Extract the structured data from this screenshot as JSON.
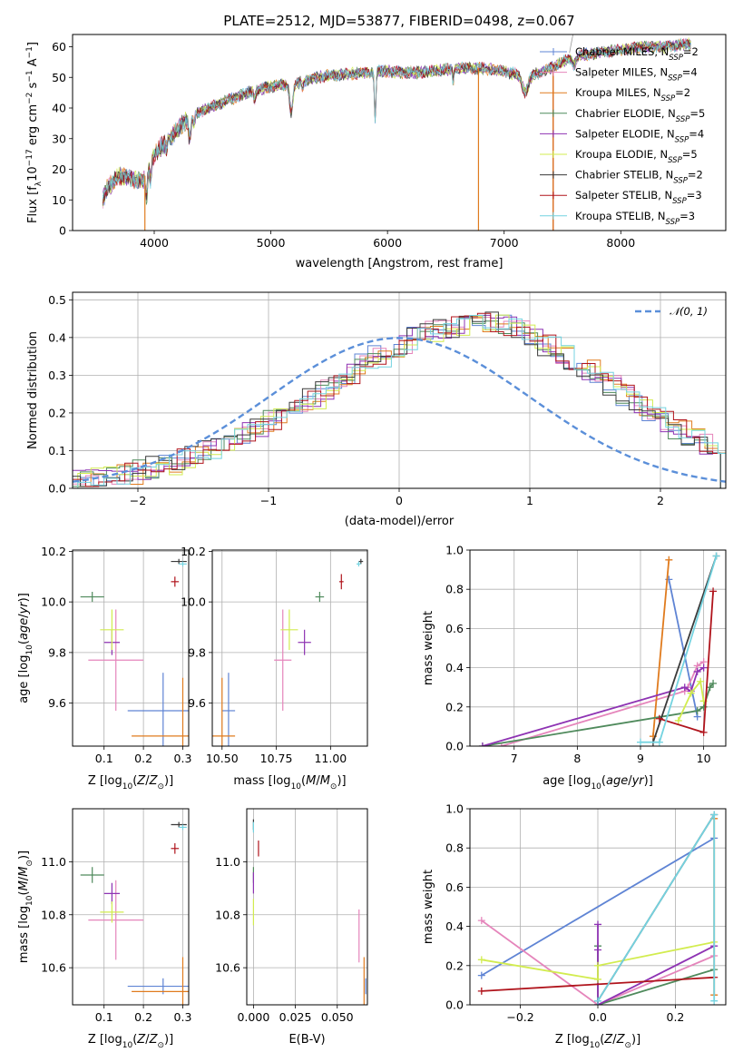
{
  "figure": {
    "title": "PLATE=2512, MJD=53877, FIBERID=0498, z=0.067"
  },
  "colors": {
    "Chabrier MILES": "#5f84d4",
    "Salpeter MILES": "#e585bb",
    "Kroupa MILES": "#e07b1e",
    "Chabrier ELODIE": "#4f8a5c",
    "Salpeter ELODIE": "#8e33b3",
    "Kroupa ELODIE": "#d2ec4f",
    "Chabrier STELIB": "#3a3a3a",
    "Salpeter STELIB": "#b0141c",
    "Kroupa STELIB": "#74d3e0"
  },
  "chart_data": [
    {
      "id": "spectrum",
      "type": "line",
      "title": "PLATE=2512, MJD=53877, FIBERID=0498, z=0.067",
      "xlabel": "wavelength [Angstrom, rest frame]",
      "ylabel": "Flux [f_λ 10^-17 erg cm^-2 s^-1 A^-1]",
      "xlim": [
        3300,
        8900
      ],
      "ylim": [
        0,
        64
      ],
      "xticks": [
        4000,
        5000,
        6000,
        7000,
        8000
      ],
      "yticks": [
        0,
        10,
        20,
        30,
        40,
        50,
        60
      ],
      "grid": false,
      "legend_position": "right",
      "legend": [
        {
          "series": "Chabrier MILES",
          "label": "Chabrier MILES, N",
          "sub": "SSP",
          "tail": "=2"
        },
        {
          "series": "Salpeter MILES",
          "label": "Salpeter MILES, N",
          "sub": "SSP",
          "tail": "=4"
        },
        {
          "series": "Kroupa MILES",
          "label": "Kroupa MILES, N",
          "sub": "SSP",
          "tail": "=2"
        },
        {
          "series": "Chabrier ELODIE",
          "label": "Chabrier ELODIE, N",
          "sub": "SSP",
          "tail": "=5"
        },
        {
          "series": "Salpeter ELODIE",
          "label": "Salpeter ELODIE, N",
          "sub": "SSP",
          "tail": "=4"
        },
        {
          "series": "Kroupa ELODIE",
          "label": "Kroupa ELODIE, N",
          "sub": "SSP",
          "tail": "=5"
        },
        {
          "series": "Chabrier STELIB",
          "label": "Chabrier STELIB, N",
          "sub": "SSP",
          "tail": "=2"
        },
        {
          "series": "Salpeter STELIB",
          "label": "Salpeter STELIB, N",
          "sub": "SSP",
          "tail": "=3"
        },
        {
          "series": "Kroupa STELIB",
          "label": "Kroupa STELIB, N",
          "sub": "SSP",
          "tail": "=3"
        }
      ],
      "continuum": {
        "x": [
          3550,
          3600,
          3700,
          3800,
          3900,
          4000,
          4100,
          4200,
          4300,
          4400,
          4600,
          4800,
          5000,
          5200,
          5400,
          5600,
          5800,
          5900,
          6000,
          6200,
          6400,
          6600,
          6800,
          7000,
          7200,
          7400,
          7600,
          7800,
          8000,
          8200,
          8400,
          8600
        ],
        "y": [
          9,
          14,
          18,
          17,
          16,
          25,
          29,
          33,
          37,
          39,
          42,
          45,
          47,
          48,
          50,
          51,
          51.5,
          52,
          52,
          51.5,
          52,
          53,
          53,
          52,
          50,
          53,
          57,
          58,
          59,
          60,
          60,
          61
        ]
      },
      "model_dropouts": [
        {
          "series": "Kroupa MILES",
          "x": 3920
        },
        {
          "series": "Kroupa MILES",
          "x": 6780
        },
        {
          "series": "Salpeter STELIB",
          "x": 7420
        },
        {
          "series": "Kroupa MILES",
          "x": 7420
        }
      ]
    },
    {
      "id": "residuals",
      "type": "histogram",
      "xlabel": "(data-model)/error",
      "ylabel": "Normed distribution",
      "xlim": [
        -2.5,
        2.5
      ],
      "ylim": [
        0,
        0.52
      ],
      "xticks": [
        -2,
        -1,
        0,
        1,
        2
      ],
      "yticks": [
        0.0,
        0.1,
        0.2,
        0.3,
        0.4,
        0.5
      ],
      "grid": true,
      "legend_position": "top-right",
      "reference": {
        "label": "𝒩(0, 1)",
        "color": "#5b8fd9",
        "mean": 0,
        "sigma": 1
      },
      "bins": {
        "start": -2.5,
        "width": 0.1,
        "count": 50
      },
      "base_counts": [
        0.02,
        0.025,
        0.03,
        0.035,
        0.04,
        0.05,
        0.055,
        0.065,
        0.075,
        0.085,
        0.1,
        0.115,
        0.13,
        0.145,
        0.165,
        0.185,
        0.2,
        0.22,
        0.24,
        0.265,
        0.285,
        0.305,
        0.33,
        0.35,
        0.37,
        0.385,
        0.4,
        0.415,
        0.425,
        0.43,
        0.44,
        0.445,
        0.44,
        0.43,
        0.42,
        0.4,
        0.38,
        0.36,
        0.34,
        0.315,
        0.29,
        0.27,
        0.245,
        0.22,
        0.195,
        0.175,
        0.155,
        0.135,
        0.115,
        0.1
      ]
    },
    {
      "id": "z-age",
      "type": "scatter",
      "xlabel": "Z [log10(Z/Z⊙)]",
      "ylabel": "age [log10(age/yr)]",
      "xlim": [
        0.02,
        0.315
      ],
      "ylim": [
        9.43,
        10.205
      ],
      "xticks": [
        0.1,
        0.2,
        0.3
      ],
      "yticks": [
        9.6,
        9.8,
        10.0,
        10.2
      ],
      "grid": true,
      "points": [
        {
          "series": "Chabrier MILES",
          "x": 0.25,
          "y": 9.57,
          "xerr": 0.09,
          "yerr": 0.15
        },
        {
          "series": "Salpeter MILES",
          "x": 0.13,
          "y": 9.77,
          "xerr": 0.07,
          "yerr": 0.2
        },
        {
          "series": "Kroupa MILES",
          "x": 0.3,
          "y": 9.47,
          "xerr": 0.13,
          "yerr": 0.23
        },
        {
          "series": "Chabrier ELODIE",
          "x": 0.07,
          "y": 10.02,
          "xerr": 0.03,
          "yerr": 0.02
        },
        {
          "series": "Salpeter ELODIE",
          "x": 0.12,
          "y": 9.84,
          "xerr": 0.02,
          "yerr": 0.05
        },
        {
          "series": "Kroupa ELODIE",
          "x": 0.12,
          "y": 9.89,
          "xerr": 0.03,
          "yerr": 0.08
        },
        {
          "series": "Chabrier STELIB",
          "x": 0.29,
          "y": 10.16,
          "xerr": 0.02,
          "yerr": 0.01
        },
        {
          "series": "Salpeter STELIB",
          "x": 0.28,
          "y": 10.08,
          "xerr": 0.01,
          "yerr": 0.02
        },
        {
          "series": "Kroupa STELIB",
          "x": 0.3,
          "y": 10.15,
          "xerr": 0.01,
          "yerr": 0.01
        }
      ]
    },
    {
      "id": "mass-age",
      "type": "scatter",
      "xlabel": "mass [log10(M/M⊙)]",
      "ylabel": "",
      "xlim": [
        10.455,
        11.17
      ],
      "ylim": [
        9.43,
        10.205
      ],
      "xticks": [
        10.5,
        10.75,
        11.0
      ],
      "yticks": [
        9.6,
        9.8,
        10.0,
        10.2
      ],
      "grid": true,
      "points": [
        {
          "series": "Chabrier MILES",
          "x": 10.53,
          "y": 9.57,
          "xerr": 0.03,
          "yerr": 0.15
        },
        {
          "series": "Salpeter MILES",
          "x": 10.78,
          "y": 9.77,
          "xerr": 0.04,
          "yerr": 0.2
        },
        {
          "series": "Kroupa MILES",
          "x": 10.5,
          "y": 9.47,
          "xerr": 0.06,
          "yerr": 0.23
        },
        {
          "series": "Chabrier ELODIE",
          "x": 10.95,
          "y": 10.02,
          "xerr": 0.02,
          "yerr": 0.02
        },
        {
          "series": "Salpeter ELODIE",
          "x": 10.88,
          "y": 9.84,
          "xerr": 0.03,
          "yerr": 0.05
        },
        {
          "series": "Kroupa ELODIE",
          "x": 10.81,
          "y": 9.89,
          "xerr": 0.04,
          "yerr": 0.08
        },
        {
          "series": "Chabrier STELIB",
          "x": 11.14,
          "y": 10.16,
          "xerr": 0.01,
          "yerr": 0.01
        },
        {
          "series": "Salpeter STELIB",
          "x": 11.05,
          "y": 10.08,
          "xerr": 0.01,
          "yerr": 0.03
        },
        {
          "series": "Kroupa STELIB",
          "x": 11.13,
          "y": 10.15,
          "xerr": 0.01,
          "yerr": 0.01
        }
      ]
    },
    {
      "id": "age-weight",
      "type": "line",
      "xlabel": "age [log10(age/yr)]",
      "ylabel": "mass weight",
      "xlim": [
        6.3,
        10.35
      ],
      "ylim": [
        0,
        1
      ],
      "xticks": [
        7,
        8,
        9,
        10
      ],
      "yticks": [
        0.0,
        0.2,
        0.4,
        0.6,
        0.8,
        1.0
      ],
      "grid": true,
      "series": [
        {
          "name": "Chabrier MILES",
          "x": [
            9.45,
            9.9
          ],
          "y": [
            0.85,
            0.15
          ]
        },
        {
          "name": "Salpeter MILES",
          "x": [
            6.8,
            9.7,
            9.75,
            9.9,
            10.0
          ],
          "y": [
            0.0,
            0.28,
            0.3,
            0.41,
            0.43
          ]
        },
        {
          "name": "Kroupa MILES",
          "x": [
            9.2,
            9.45
          ],
          "y": [
            0.05,
            0.95
          ]
        },
        {
          "name": "Chabrier ELODIE",
          "x": [
            6.5,
            9.9,
            10.0,
            10.1,
            10.15
          ],
          "y": [
            0.0,
            0.18,
            0.2,
            0.3,
            0.32
          ]
        },
        {
          "name": "Salpeter ELODIE",
          "x": [
            6.5,
            9.7,
            9.8,
            9.9,
            10.0
          ],
          "y": [
            0.0,
            0.3,
            0.28,
            0.38,
            0.4
          ]
        },
        {
          "name": "Kroupa ELODIE",
          "x": [
            9.6,
            9.8,
            9.95,
            10.0
          ],
          "y": [
            0.13,
            0.27,
            0.33,
            0.23
          ]
        },
        {
          "name": "Chabrier STELIB",
          "x": [
            9.2,
            10.2
          ],
          "y": [
            0.02,
            0.97
          ]
        },
        {
          "name": "Salpeter STELIB",
          "x": [
            9.3,
            10.0,
            10.15
          ],
          "y": [
            0.14,
            0.07,
            0.79
          ]
        },
        {
          "name": "Kroupa STELIB",
          "x": [
            9.0,
            9.3,
            10.2
          ],
          "y": [
            0.02,
            0.02,
            0.97
          ]
        }
      ]
    },
    {
      "id": "z-mass",
      "type": "scatter",
      "xlabel": "Z [log10(Z/Z⊙)]",
      "ylabel": "mass [log10(M/M⊙)]",
      "xlim": [
        0.02,
        0.315
      ],
      "ylim": [
        10.46,
        11.2
      ],
      "xticks": [
        0.1,
        0.2,
        0.3
      ],
      "yticks": [
        10.6,
        10.8,
        11.0
      ],
      "grid": true,
      "points": [
        {
          "series": "Chabrier MILES",
          "x": 0.25,
          "y": 10.53,
          "xerr": 0.09,
          "yerr": 0.03
        },
        {
          "series": "Salpeter MILES",
          "x": 0.13,
          "y": 10.78,
          "xerr": 0.07,
          "yerr": 0.15
        },
        {
          "series": "Kroupa MILES",
          "x": 0.3,
          "y": 10.51,
          "xerr": 0.13,
          "yerr": 0.13
        },
        {
          "series": "Chabrier ELODIE",
          "x": 0.07,
          "y": 10.95,
          "xerr": 0.03,
          "yerr": 0.03
        },
        {
          "series": "Salpeter ELODIE",
          "x": 0.12,
          "y": 10.88,
          "xerr": 0.02,
          "yerr": 0.04
        },
        {
          "series": "Kroupa ELODIE",
          "x": 0.12,
          "y": 10.81,
          "xerr": 0.03,
          "yerr": 0.04
        },
        {
          "series": "Chabrier STELIB",
          "x": 0.29,
          "y": 11.14,
          "xerr": 0.02,
          "yerr": 0.01
        },
        {
          "series": "Salpeter STELIB",
          "x": 0.28,
          "y": 11.05,
          "xerr": 0.01,
          "yerr": 0.02
        },
        {
          "series": "Kroupa STELIB",
          "x": 0.3,
          "y": 11.13,
          "xerr": 0.01,
          "yerr": 0.01
        }
      ]
    },
    {
      "id": "ebv-mass",
      "type": "scatter",
      "xlabel": "E(B-V)",
      "ylabel": "",
      "xlim": [
        -0.004,
        0.068
      ],
      "ylim": [
        10.46,
        11.2
      ],
      "xticks": [
        0.0,
        0.025,
        0.05
      ],
      "xticklabels": [
        "0.000",
        "0.025",
        "0.050"
      ],
      "yticks": [
        10.6,
        10.8,
        11.0
      ],
      "grid": true,
      "points": [
        {
          "series": "Chabrier MILES",
          "x": 0.067,
          "y": 10.53,
          "xerr": 0,
          "yerr": 0.03
        },
        {
          "series": "Salpeter MILES",
          "x": 0.063,
          "y": 10.72,
          "xerr": 0,
          "yerr": 0.1
        },
        {
          "series": "Kroupa MILES",
          "x": 0.066,
          "y": 10.55,
          "xerr": 0,
          "yerr": 0.09
        },
        {
          "series": "Chabrier ELODIE",
          "x": 0.0,
          "y": 10.95,
          "xerr": 0,
          "yerr": 0.03
        },
        {
          "series": "Salpeter ELODIE",
          "x": 0.0,
          "y": 10.92,
          "xerr": 0,
          "yerr": 0.04
        },
        {
          "series": "Kroupa ELODIE",
          "x": 0.0,
          "y": 10.81,
          "xerr": 0,
          "yerr": 0.05
        },
        {
          "series": "Chabrier STELIB",
          "x": 0.0,
          "y": 11.14,
          "xerr": 0,
          "yerr": 0.02
        },
        {
          "series": "Salpeter STELIB",
          "x": 0.003,
          "y": 11.05,
          "xerr": 0,
          "yerr": 0.03
        },
        {
          "series": "Kroupa STELIB",
          "x": 0.0,
          "y": 11.13,
          "xerr": 0,
          "yerr": 0.02
        }
      ]
    },
    {
      "id": "z-weight",
      "type": "line",
      "xlabel": "Z [log10(Z/Z⊙)]",
      "ylabel": "mass weight",
      "xlim": [
        -0.33,
        0.33
      ],
      "ylim": [
        0,
        1
      ],
      "xticks": [
        -0.2,
        0.0,
        0.2
      ],
      "yticks": [
        0.0,
        0.2,
        0.4,
        0.6,
        0.8,
        1.0
      ],
      "grid": true,
      "series": [
        {
          "name": "Chabrier MILES",
          "x": [
            -0.3,
            0.3
          ],
          "y": [
            0.15,
            0.85
          ]
        },
        {
          "name": "Salpeter MILES",
          "x": [
            -0.3,
            0.0,
            0.3
          ],
          "y": [
            0.43,
            0.0,
            0.25
          ]
        },
        {
          "name": "Kroupa MILES",
          "x": [
            0.3,
            0.3
          ],
          "y": [
            0.05,
            0.95
          ]
        },
        {
          "name": "Chabrier ELODIE",
          "x": [
            0.0,
            0.0,
            0.3
          ],
          "y": [
            0.3,
            0.0,
            0.18
          ]
        },
        {
          "name": "Salpeter ELODIE",
          "x": [
            0.0,
            0.0,
            0.0,
            0.3
          ],
          "y": [
            0.41,
            0.28,
            0.0,
            0.3
          ]
        },
        {
          "name": "Kroupa ELODIE",
          "x": [
            -0.3,
            0.0,
            0.0,
            0.3
          ],
          "y": [
            0.23,
            0.13,
            0.2,
            0.32
          ]
        },
        {
          "name": "Chabrier STELIB",
          "x": [
            0.0,
            0.3
          ],
          "y": [
            0.02,
            0.97
          ]
        },
        {
          "name": "Salpeter STELIB",
          "x": [
            -0.3,
            0.3
          ],
          "y": [
            0.07,
            0.14
          ]
        },
        {
          "name": "Kroupa STELIB",
          "x": [
            0.0,
            0.3,
            0.3
          ],
          "y": [
            0.02,
            0.97,
            0.02
          ]
        }
      ]
    }
  ]
}
